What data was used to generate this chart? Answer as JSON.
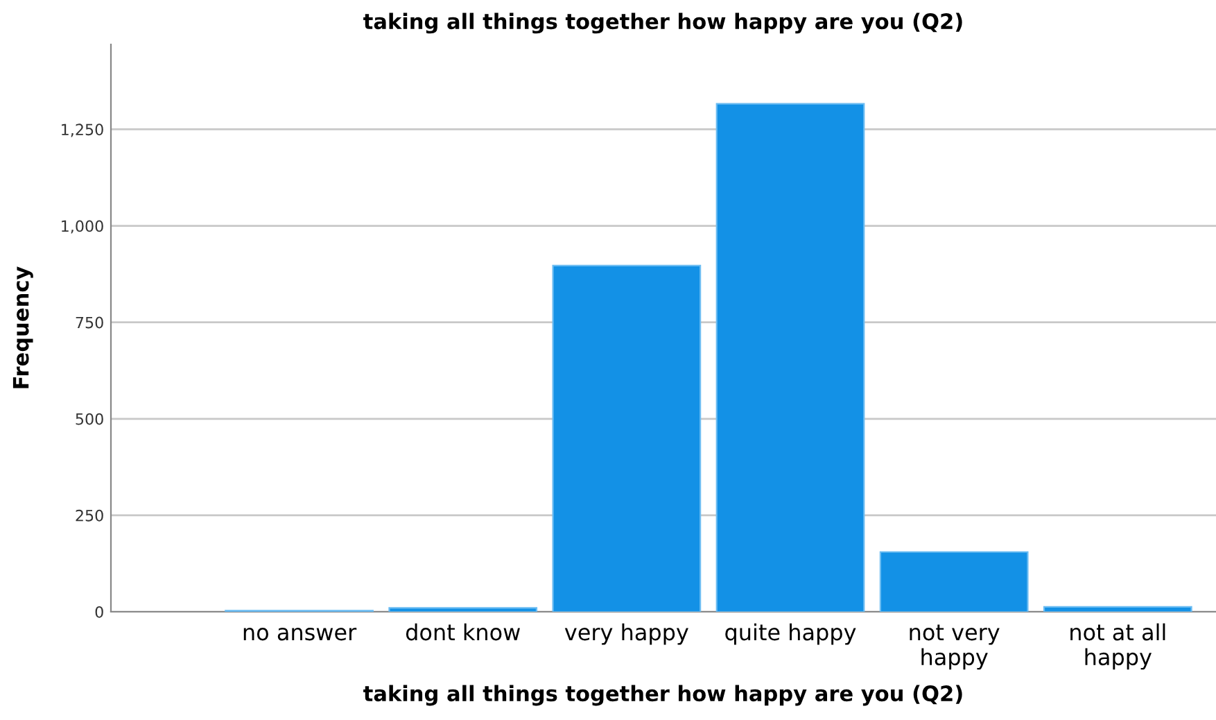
{
  "chart_data": {
    "type": "bar",
    "title": "taking all things together how happy are you (Q2)",
    "xlabel": "taking all things together how happy are you (Q2)",
    "ylabel": "Frequency",
    "categories": [
      "no answer",
      "dont know",
      "very happy",
      "quite happy",
      "not very\nhappy",
      "not at all\nhappy"
    ],
    "values": [
      3,
      10,
      897,
      1316,
      155,
      13
    ],
    "color": "#1391e6",
    "ylim": [
      0,
      1470
    ],
    "yticks": [
      0,
      {
        "value": 250,
        "label": "250"
      },
      {
        "value": 500,
        "label": "500"
      },
      {
        "value": 750,
        "label": "750"
      },
      {
        "value": 1000,
        "label": "1,000"
      },
      {
        "value": 1250,
        "label": "1,250"
      }
    ],
    "grid": "y"
  }
}
